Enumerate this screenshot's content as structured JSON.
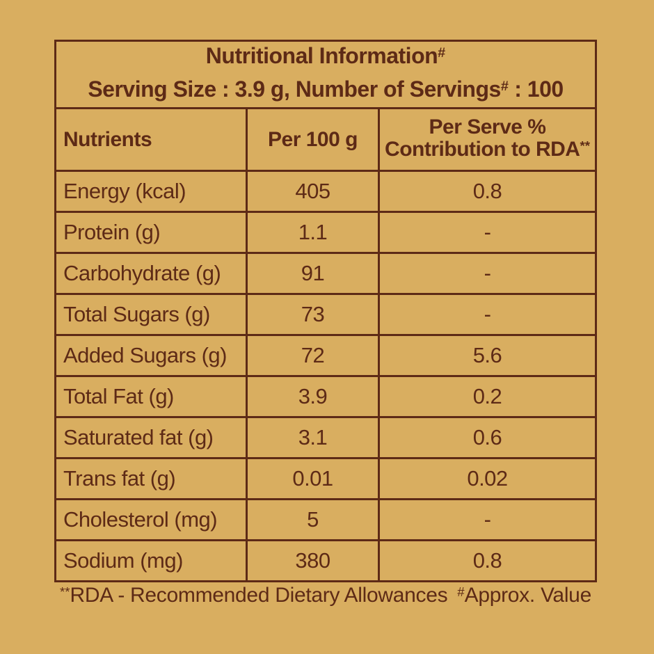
{
  "colors": {
    "background": "#d9ae60",
    "ink": "#5d2a16"
  },
  "header": {
    "title": "Nutritional Information",
    "title_sup": "#",
    "serving_prefix": "Serving Size : 3.9 g, Number of Servings",
    "serving_sup": "#",
    "serving_suffix": " : 100"
  },
  "columns": {
    "nutrients": "Nutrients",
    "per_100g": "Per 100 g",
    "per_serve_line1": "Per Serve %",
    "per_serve_line2": "Contribution to RDA",
    "per_serve_sup": "**"
  },
  "rows": [
    {
      "nutrient": "Energy (kcal)",
      "per_100g": "405",
      "rda": "0.8"
    },
    {
      "nutrient": "Protein (g)",
      "per_100g": "1.1",
      "rda": "-"
    },
    {
      "nutrient": "Carbohydrate (g)",
      "per_100g": "91",
      "rda": "-"
    },
    {
      "nutrient": "Total Sugars (g)",
      "per_100g": "73",
      "rda": "-"
    },
    {
      "nutrient": "Added Sugars (g)",
      "per_100g": "72",
      "rda": "5.6"
    },
    {
      "nutrient": "Total Fat (g)",
      "per_100g": "3.9",
      "rda": "0.2"
    },
    {
      "nutrient": "Saturated fat (g)",
      "per_100g": "3.1",
      "rda": "0.6"
    },
    {
      "nutrient": "Trans fat (g)",
      "per_100g": "0.01",
      "rda": "0.02"
    },
    {
      "nutrient": "Cholesterol (mg)",
      "per_100g": "5",
      "rda": "-"
    },
    {
      "nutrient": "Sodium (mg)",
      "per_100g": "380",
      "rda": "0.8"
    }
  ],
  "footer": {
    "rda_sup": "**",
    "rda_text": "RDA - Recommended Dietary Allowances",
    "approx_sup": "#",
    "approx_text": "Approx. Value"
  }
}
